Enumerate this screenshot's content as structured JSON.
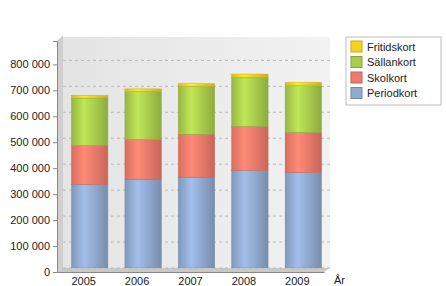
{
  "chart_data": {
    "type": "bar",
    "stacked": true,
    "grid": true,
    "legend": "top-right",
    "x_label": "År",
    "categories": [
      "2005",
      "2006",
      "2007",
      "2008",
      "2009"
    ],
    "series": [
      {
        "name": "Periodkort",
        "color": "#8fa9cf",
        "values": [
          322000,
          342000,
          350000,
          376000,
          368000
        ]
      },
      {
        "name": "Skolkort",
        "color": "#f07a6a",
        "values": [
          150000,
          153000,
          165000,
          169000,
          154000
        ]
      },
      {
        "name": "Sällankort",
        "color": "#a9cc4c",
        "values": [
          183000,
          185000,
          185000,
          190000,
          181000
        ]
      },
      {
        "name": "Fritidskort",
        "color": "#f5d21e",
        "values": [
          10000,
          10000,
          10000,
          12000,
          12000
        ]
      }
    ],
    "ylim": [
      0,
      890000
    ],
    "yticks": [
      0,
      {
        "value": 100000,
        "label": "100 000"
      },
      {
        "value": 200000,
        "label": "200 000"
      },
      {
        "value": 300000,
        "label": "300 000"
      },
      {
        "value": 400000,
        "label": "400 000"
      },
      {
        "value": 500000,
        "label": "500 000"
      },
      {
        "value": 600000,
        "label": "600 000"
      },
      {
        "value": 700000,
        "label": "700 000"
      },
      {
        "value": 800000,
        "label": "800 000"
      }
    ]
  }
}
